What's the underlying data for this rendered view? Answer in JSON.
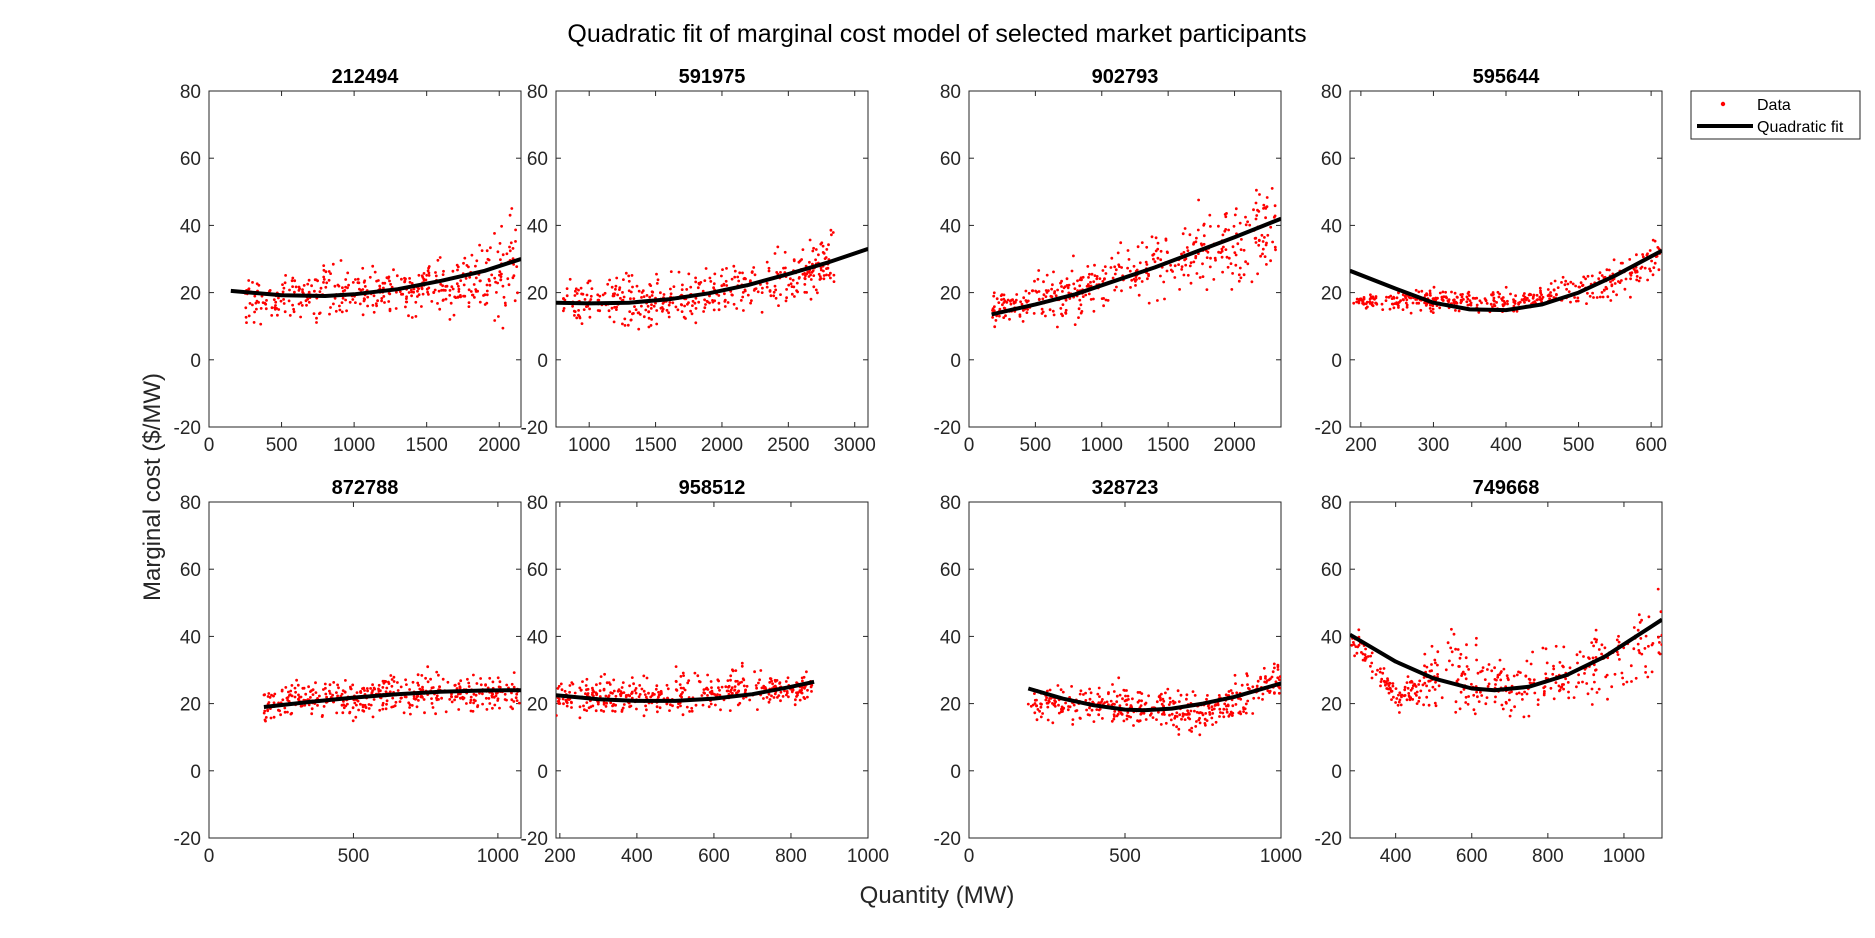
{
  "figure": {
    "title": "Quadratic fit of marginal cost model of selected market participants",
    "xlabel": "Quantity (MW)",
    "ylabel": "Marginal cost ($/MW)",
    "legend": {
      "position": "top-right outside",
      "entries": [
        "Data",
        "Quadratic fit"
      ]
    },
    "colors": {
      "data": "#ff0000",
      "fit": "#000000",
      "axes": "#262626"
    }
  },
  "chart_data": [
    {
      "type": "scatter",
      "title": "212494",
      "xlim": [
        0,
        2150
      ],
      "ylim": [
        -20,
        80
      ],
      "xticks": [
        0,
        500,
        1000,
        1500,
        2000
      ],
      "yticks": [
        -20,
        0,
        20,
        40,
        60,
        80
      ],
      "data_x_range": [
        250,
        2130
      ],
      "data_bands": [
        [
          250,
          18,
          6
        ],
        [
          500,
          18,
          6
        ],
        [
          800,
          20,
          7
        ],
        [
          1100,
          20,
          6
        ],
        [
          1400,
          21,
          7
        ],
        [
          1700,
          23,
          8
        ],
        [
          1900,
          26,
          11
        ],
        [
          2100,
          28,
          14
        ]
      ],
      "fit": {
        "x": [
          150,
          500,
          800,
          1000,
          1300,
          1600,
          1900,
          2150
        ],
        "y": [
          20.5,
          19.2,
          19.0,
          19.5,
          21.0,
          23.5,
          26.5,
          30.0
        ]
      }
    },
    {
      "type": "scatter",
      "title": "591975",
      "xlim": [
        750,
        3100
      ],
      "ylim": [
        -20,
        80
      ],
      "xticks": [
        1000,
        1500,
        2000,
        2500,
        3000
      ],
      "yticks": [
        -20,
        0,
        20,
        40,
        60,
        80
      ],
      "data_x_range": [
        800,
        2850
      ],
      "data_bands": [
        [
          800,
          17,
          5
        ],
        [
          1100,
          17,
          6
        ],
        [
          1400,
          17,
          7
        ],
        [
          1700,
          18,
          6
        ],
        [
          2000,
          20,
          6
        ],
        [
          2300,
          23,
          7
        ],
        [
          2600,
          26,
          8
        ],
        [
          2850,
          30,
          9
        ]
      ],
      "fit": {
        "x": [
          750,
          1000,
          1300,
          1600,
          1900,
          2200,
          2500,
          2800,
          3100
        ],
        "y": [
          17.0,
          16.8,
          17.0,
          18.0,
          19.8,
          22.3,
          25.5,
          29.0,
          33.0
        ]
      }
    },
    {
      "type": "scatter",
      "title": "902793",
      "xlim": [
        0,
        2350
      ],
      "ylim": [
        -20,
        80
      ],
      "xticks": [
        0,
        500,
        1000,
        1500,
        2000
      ],
      "yticks": [
        -20,
        0,
        20,
        40,
        60,
        80
      ],
      "data_x_range": [
        170,
        2310
      ],
      "data_bands": [
        [
          200,
          15,
          4
        ],
        [
          500,
          18,
          6
        ],
        [
          800,
          20,
          7
        ],
        [
          1100,
          25,
          8
        ],
        [
          1400,
          28,
          10
        ],
        [
          1700,
          32,
          10
        ],
        [
          2000,
          35,
          12
        ],
        [
          2300,
          40,
          14
        ]
      ],
      "fit": {
        "x": [
          170,
          500,
          800,
          1100,
          1400,
          1700,
          2000,
          2350
        ],
        "y": [
          13.5,
          16.5,
          19.5,
          23.5,
          27.5,
          32.0,
          36.5,
          42.0
        ]
      }
    },
    {
      "type": "scatter",
      "title": "595644",
      "xlim": [
        185,
        615
      ],
      "ylim": [
        -20,
        80
      ],
      "xticks": [
        200,
        300,
        400,
        500,
        600
      ],
      "yticks": [
        -20,
        0,
        20,
        40,
        60,
        80
      ],
      "data_x_range": [
        190,
        612
      ],
      "data_bands": [
        [
          200,
          17,
          2
        ],
        [
          300,
          18,
          3
        ],
        [
          400,
          17,
          3
        ],
        [
          480,
          20,
          3
        ],
        [
          520,
          22,
          4
        ],
        [
          560,
          24,
          5
        ],
        [
          600,
          30,
          6
        ]
      ],
      "fit": {
        "x": [
          185,
          250,
          300,
          350,
          400,
          450,
          500,
          550,
          615
        ],
        "y": [
          26.5,
          21.0,
          17.0,
          15.0,
          14.8,
          16.5,
          20.0,
          25.0,
          32.5
        ]
      }
    },
    {
      "type": "scatter",
      "title": "872788",
      "xlim": [
        0,
        1080
      ],
      "ylim": [
        -20,
        80
      ],
      "xticks": [
        0,
        500,
        1000
      ],
      "yticks": [
        -20,
        0,
        20,
        40,
        60,
        80
      ],
      "data_x_range": [
        190,
        1075
      ],
      "data_bands": [
        [
          200,
          20,
          5
        ],
        [
          400,
          22,
          5
        ],
        [
          600,
          22,
          5
        ],
        [
          800,
          24,
          5
        ],
        [
          900,
          23,
          5
        ],
        [
          1075,
          23,
          5
        ]
      ],
      "fit": {
        "x": [
          190,
          350,
          500,
          650,
          800,
          950,
          1080
        ],
        "y": [
          19.0,
          20.5,
          21.8,
          22.8,
          23.5,
          23.9,
          24.0
        ]
      }
    },
    {
      "type": "scatter",
      "title": "958512",
      "xlim": [
        190,
        1000
      ],
      "ylim": [
        -20,
        80
      ],
      "xticks": [
        200,
        400,
        600,
        800,
        1000
      ],
      "yticks": [
        -20,
        0,
        20,
        40,
        60,
        80
      ],
      "data_x_range": [
        190,
        860
      ],
      "data_bands": [
        [
          200,
          22,
          5
        ],
        [
          400,
          22,
          5
        ],
        [
          550,
          24,
          6
        ],
        [
          700,
          24,
          5
        ],
        [
          800,
          24,
          4
        ],
        [
          860,
          26,
          4
        ]
      ],
      "fit": {
        "x": [
          190,
          300,
          400,
          500,
          600,
          700,
          800,
          860
        ],
        "y": [
          22.5,
          21.3,
          20.8,
          20.8,
          21.5,
          22.8,
          25.0,
          26.5
        ]
      }
    },
    {
      "type": "scatter",
      "title": "328723",
      "xlim": [
        0,
        1000
      ],
      "ylim": [
        -20,
        80
      ],
      "xticks": [
        0,
        500,
        1000
      ],
      "yticks": [
        -20,
        0,
        20,
        40,
        60,
        80
      ],
      "data_x_range": [
        190,
        1000
      ],
      "data_bands": [
        [
          200,
          20,
          5
        ],
        [
          400,
          20,
          5
        ],
        [
          600,
          19,
          5
        ],
        [
          750,
          17,
          5
        ],
        [
          900,
          23,
          5
        ],
        [
          1000,
          28,
          6
        ]
      ],
      "fit": {
        "x": [
          190,
          300,
          400,
          500,
          560,
          650,
          750,
          850,
          1000
        ],
        "y": [
          24.5,
          21.5,
          19.5,
          18.2,
          18.0,
          18.5,
          20.0,
          22.0,
          26.0
        ]
      }
    },
    {
      "type": "scatter",
      "title": "749668",
      "xlim": [
        280,
        1100
      ],
      "ylim": [
        -20,
        80
      ],
      "xticks": [
        400,
        600,
        800,
        1000
      ],
      "yticks": [
        -20,
        0,
        20,
        40,
        60,
        80
      ],
      "data_x_range": [
        280,
        1100
      ],
      "data_bands": [
        [
          300,
          38,
          4
        ],
        [
          400,
          22,
          3
        ],
        [
          550,
          30,
          10
        ],
        [
          700,
          24,
          8
        ],
        [
          850,
          28,
          9
        ],
        [
          1000,
          34,
          12
        ],
        [
          1100,
          40,
          12
        ]
      ],
      "fit": {
        "x": [
          280,
          400,
          500,
          600,
          660,
          750,
          850,
          950,
          1100
        ],
        "y": [
          40.5,
          32.5,
          27.5,
          24.5,
          24.0,
          25.0,
          28.5,
          34.0,
          45.0
        ]
      }
    }
  ]
}
